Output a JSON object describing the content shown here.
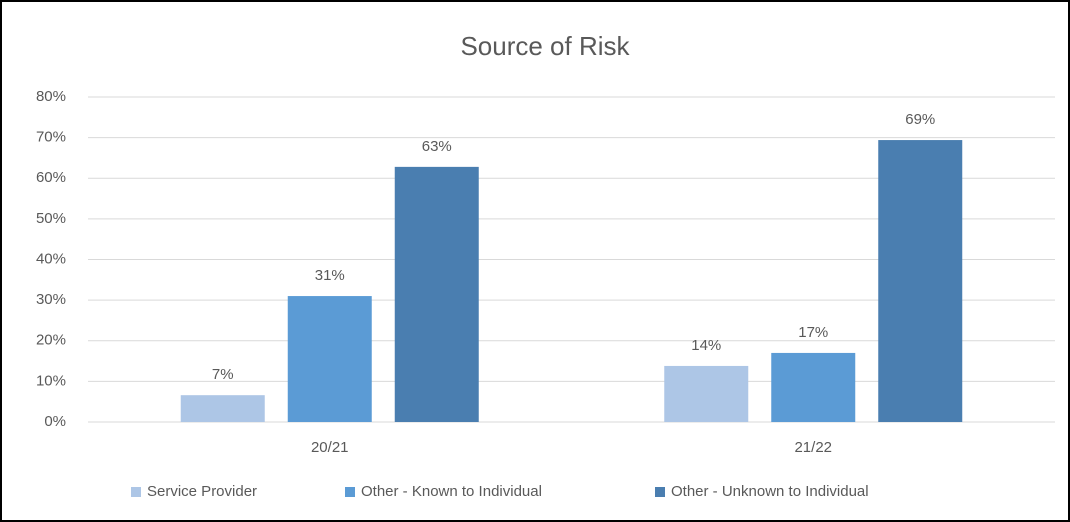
{
  "chart_data": {
    "type": "bar",
    "title": "Source of Risk",
    "categories": [
      "20/21",
      "21/22"
    ],
    "series": [
      {
        "name": "Service Provider",
        "color": "#adc6e6",
        "values": [
          6.6,
          13.8
        ],
        "value_labels": [
          "7%",
          "14%"
        ]
      },
      {
        "name": "Other - Known to Individual",
        "color": "#5b9bd5",
        "values": [
          31.0,
          17.0
        ],
        "value_labels": [
          "31%",
          "17%"
        ]
      },
      {
        "name": "Other - Unknown to Individual",
        "color": "#4a7eb0",
        "values": [
          62.8,
          69.4
        ],
        "value_labels": [
          "63%",
          "69%"
        ]
      }
    ],
    "ylim": [
      0,
      80
    ],
    "yticks": [
      {
        "value": 0,
        "label": "0%"
      },
      {
        "value": 10,
        "label": "10%"
      },
      {
        "value": 20,
        "label": "20%"
      },
      {
        "value": 30,
        "label": "30%"
      },
      {
        "value": 40,
        "label": "40%"
      },
      {
        "value": 50,
        "label": "50%"
      },
      {
        "value": 60,
        "label": "60%"
      },
      {
        "value": 70,
        "label": "70%"
      },
      {
        "value": 80,
        "label": "80%"
      }
    ],
    "grid": true,
    "legend": "bottom"
  }
}
